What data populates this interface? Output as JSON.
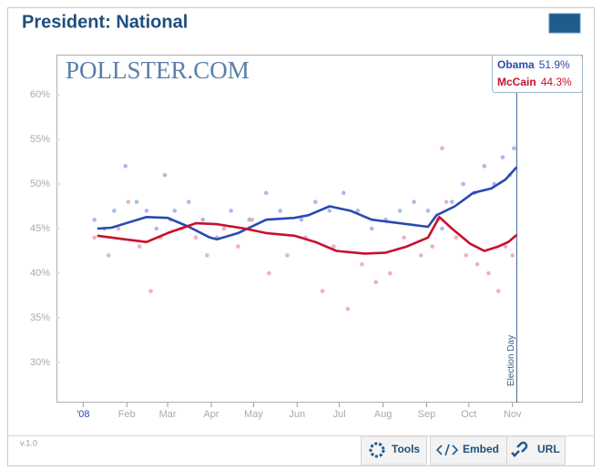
{
  "chart_data": {
    "type": "line",
    "title": "President: National",
    "logo": "POLLSTER.COM",
    "annotation": "Election Day",
    "annotation_x": 308,
    "xlim": [
      -19,
      355
    ],
    "xticks": [
      {
        "value": 0,
        "label": "'08"
      },
      {
        "value": 31,
        "label": "Feb"
      },
      {
        "value": 60,
        "label": "Mar"
      },
      {
        "value": 91,
        "label": "Apr"
      },
      {
        "value": 121,
        "label": "May"
      },
      {
        "value": 152,
        "label": "Jun"
      },
      {
        "value": 182,
        "label": "Jul"
      },
      {
        "value": 213,
        "label": "Aug"
      },
      {
        "value": 244,
        "label": "Sep"
      },
      {
        "value": 274,
        "label": "Oct"
      },
      {
        "value": 305,
        "label": "Nov"
      }
    ],
    "ylim": [
      25.5,
      64.5
    ],
    "yticks": [
      {
        "value": 30,
        "label": "30%"
      },
      {
        "value": 35,
        "label": "35%"
      },
      {
        "value": 40,
        "label": "40%"
      },
      {
        "value": 45,
        "label": "45%"
      },
      {
        "value": 50,
        "label": "50%"
      },
      {
        "value": 55,
        "label": "55%"
      },
      {
        "value": 60,
        "label": "60%"
      }
    ],
    "legend": "top-right",
    "series": [
      {
        "name": "Obama",
        "color": "#2a4aaf",
        "dot_color": "#8fa3e0",
        "x": [
          10,
          20,
          45,
          60,
          75,
          90,
          95,
          110,
          130,
          150,
          160,
          175,
          190,
          205,
          230,
          245,
          251,
          264,
          277,
          290,
          300,
          308
        ],
        "values": [
          45,
          45.1,
          46.3,
          46.2,
          45.2,
          44,
          43.8,
          44.5,
          46,
          46.2,
          46.5,
          47.5,
          47,
          46,
          45.5,
          45.2,
          46.5,
          47.5,
          49,
          49.5,
          50.5,
          51.9
        ],
        "latest_value": 51.9,
        "latest_label": "51.9%",
        "poll_x": [
          8,
          15,
          22,
          30,
          38,
          45,
          52,
          58,
          65,
          75,
          85,
          95,
          105,
          118,
          130,
          140,
          155,
          165,
          175,
          185,
          195,
          205,
          215,
          225,
          235,
          245,
          255,
          262,
          270,
          278,
          285,
          292,
          298,
          303,
          306
        ],
        "poll_values": [
          46,
          45,
          47,
          52,
          48,
          47,
          45,
          51,
          47,
          48,
          46,
          44,
          47,
          46,
          49,
          47,
          46,
          48,
          47,
          49,
          47,
          45,
          46,
          47,
          48,
          47,
          45,
          48,
          50,
          49,
          52,
          50,
          53,
          51,
          54
        ]
      },
      {
        "name": "McCain",
        "color": "#c8102e",
        "dot_color": "#e59aa5",
        "x": [
          10,
          30,
          45,
          60,
          80,
          95,
          115,
          130,
          150,
          165,
          180,
          200,
          215,
          230,
          245,
          253,
          262,
          275,
          285,
          295,
          302,
          308
        ],
        "values": [
          44.2,
          43.8,
          43.5,
          44.5,
          45.6,
          45.5,
          45,
          44.5,
          44.2,
          43.5,
          42.5,
          42.2,
          42.3,
          43,
          44,
          46.3,
          45,
          43.3,
          42.5,
          43,
          43.5,
          44.3
        ],
        "latest_value": 44.3,
        "latest_label": "44.3%",
        "poll_x": [
          8,
          18,
          25,
          32,
          40,
          48,
          55,
          62,
          70,
          80,
          88,
          100,
          110,
          120,
          132,
          145,
          158,
          170,
          178,
          188,
          198,
          208,
          218,
          228,
          240,
          248,
          252,
          255,
          258,
          265,
          272,
          280,
          288,
          295,
          300,
          305
        ],
        "poll_values": [
          44,
          42,
          45,
          48,
          43,
          38,
          44,
          46,
          45,
          44,
          42,
          45,
          43,
          46,
          40,
          42,
          44,
          38,
          43,
          36,
          41,
          39,
          40,
          44,
          42,
          43,
          46,
          54,
          48,
          44,
          42,
          41,
          40,
          38,
          43,
          42
        ]
      }
    ]
  },
  "toolbar": {
    "version": "v.1.0",
    "buttons": [
      "Tools",
      "Embed",
      "URL"
    ]
  }
}
